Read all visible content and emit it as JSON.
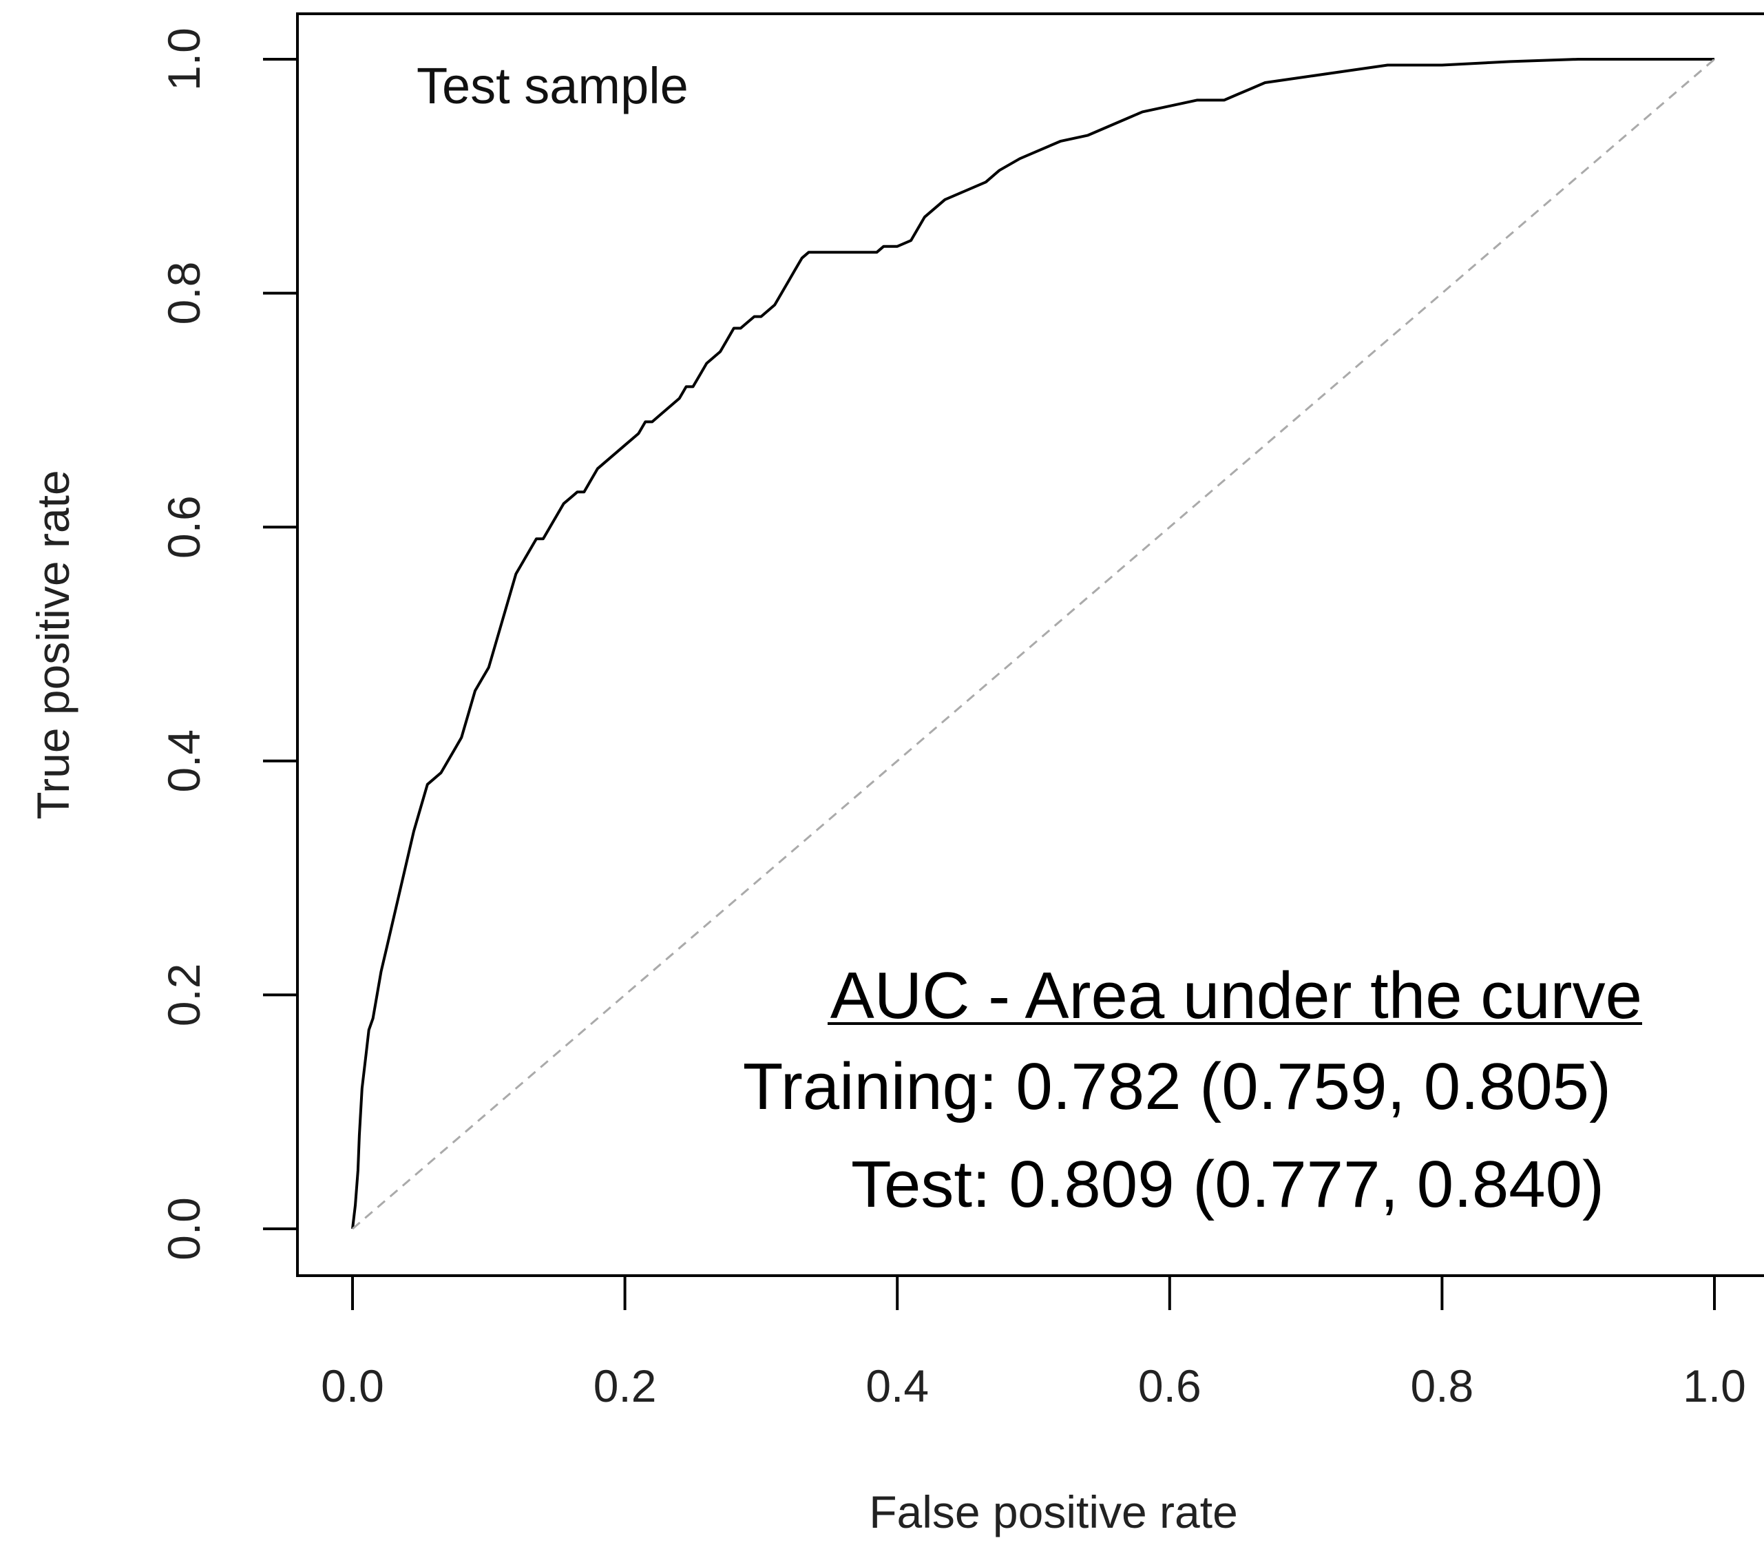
{
  "chart_data": {
    "type": "line",
    "title": "",
    "panel_label": "Test sample",
    "xlabel": "False positive rate",
    "ylabel": "True positive rate",
    "xlim": [
      0,
      1
    ],
    "ylim": [
      0,
      1
    ],
    "x_ticks": [
      "0.0",
      "0.2",
      "0.4",
      "0.6",
      "0.8",
      "1.0"
    ],
    "y_ticks": [
      "0.0",
      "0.2",
      "0.4",
      "0.6",
      "0.8",
      "1.0"
    ],
    "grid": false,
    "legend": "none",
    "annotation": {
      "heading": "AUC - Area under the curve",
      "lines": [
        "Training: 0.782 (0.759, 0.805)",
        "Test: 0.809 (0.777, 0.840)"
      ]
    },
    "series": [
      {
        "color": "#000000",
        "style": "solid",
        "x": [
          0,
          0.002,
          0.004,
          0.005,
          0.007,
          0.01,
          0.012,
          0.015,
          0.018,
          0.021,
          0.025,
          0.029,
          0.033,
          0.037,
          0.041,
          0.045,
          0.05,
          0.055,
          0.06,
          0.065,
          0.07,
          0.075,
          0.08,
          0.085,
          0.09,
          0.095,
          0.1,
          0.105,
          0.11,
          0.115,
          0.12,
          0.125,
          0.13,
          0.135,
          0.14,
          0.145,
          0.15,
          0.155,
          0.16,
          0.165,
          0.17,
          0.175,
          0.18,
          0.19,
          0.2,
          0.21,
          0.215,
          0.22,
          0.225,
          0.23,
          0.235,
          0.24,
          0.245,
          0.25,
          0.255,
          0.26,
          0.265,
          0.27,
          0.275,
          0.28,
          0.285,
          0.29,
          0.295,
          0.3,
          0.305,
          0.31,
          0.315,
          0.32,
          0.325,
          0.33,
          0.335,
          0.36,
          0.385,
          0.39,
          0.4,
          0.41,
          0.415,
          0.42,
          0.425,
          0.43,
          0.435,
          0.445,
          0.455,
          0.465,
          0.475,
          0.49,
          0.5,
          0.52,
          0.54,
          0.55,
          0.56,
          0.57,
          0.58,
          0.6,
          0.62,
          0.64,
          0.65,
          0.66,
          0.67,
          0.7,
          0.73,
          0.76,
          0.8,
          0.85,
          0.9,
          1.0
        ],
        "y": [
          0,
          0.02,
          0.05,
          0.08,
          0.12,
          0.15,
          0.17,
          0.18,
          0.2,
          0.22,
          0.24,
          0.26,
          0.28,
          0.3,
          0.32,
          0.34,
          0.36,
          0.38,
          0.385,
          0.39,
          0.4,
          0.41,
          0.42,
          0.44,
          0.46,
          0.47,
          0.48,
          0.5,
          0.52,
          0.54,
          0.56,
          0.57,
          0.58,
          0.59,
          0.59,
          0.6,
          0.61,
          0.62,
          0.625,
          0.63,
          0.63,
          0.64,
          0.65,
          0.66,
          0.67,
          0.68,
          0.69,
          0.69,
          0.695,
          0.7,
          0.705,
          0.71,
          0.72,
          0.72,
          0.73,
          0.74,
          0.745,
          0.75,
          0.76,
          0.77,
          0.77,
          0.775,
          0.78,
          0.78,
          0.785,
          0.79,
          0.8,
          0.81,
          0.82,
          0.83,
          0.835,
          0.835,
          0.835,
          0.84,
          0.84,
          0.845,
          0.855,
          0.865,
          0.87,
          0.875,
          0.88,
          0.885,
          0.89,
          0.895,
          0.905,
          0.915,
          0.92,
          0.93,
          0.935,
          0.94,
          0.945,
          0.95,
          0.955,
          0.96,
          0.965,
          0.965,
          0.97,
          0.975,
          0.98,
          0.985,
          0.99,
          0.995,
          0.995,
          0.998,
          1.0,
          1.0
        ]
      },
      {
        "color": "#aaaaaa",
        "style": "dashed",
        "x": [
          0,
          1
        ],
        "y": [
          0,
          1
        ]
      }
    ]
  }
}
